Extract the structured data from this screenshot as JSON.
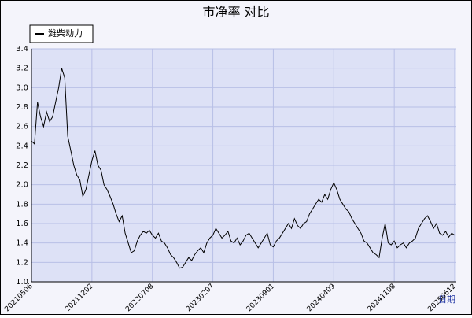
{
  "chart_data": {
    "type": "line",
    "title": "市净率 对比",
    "x_label": "日期",
    "categories": [
      "20210506",
      null,
      null,
      null,
      null,
      null,
      null,
      null,
      null,
      null,
      null,
      null,
      null,
      null,
      null,
      null,
      null,
      null,
      null,
      null,
      "20211202",
      null,
      null,
      null,
      null,
      null,
      null,
      null,
      null,
      null,
      null,
      null,
      null,
      null,
      null,
      null,
      null,
      null,
      null,
      null,
      "20220708",
      null,
      null,
      null,
      null,
      null,
      null,
      null,
      null,
      null,
      null,
      null,
      null,
      null,
      null,
      null,
      null,
      null,
      null,
      null,
      "20230207",
      null,
      null,
      null,
      null,
      null,
      null,
      null,
      null,
      null,
      null,
      null,
      null,
      null,
      null,
      null,
      null,
      null,
      null,
      null,
      "20230901",
      null,
      null,
      null,
      null,
      null,
      null,
      null,
      null,
      null,
      null,
      null,
      null,
      null,
      null,
      null,
      null,
      null,
      null,
      null,
      "20240409",
      null,
      null,
      null,
      null,
      null,
      null,
      null,
      null,
      null,
      null,
      null,
      null,
      null,
      null,
      null,
      null,
      null,
      null,
      null,
      "20241108",
      null,
      null,
      null,
      null,
      null,
      null,
      null,
      null,
      null,
      null,
      null,
      null,
      null,
      null,
      null,
      null,
      null,
      null,
      null,
      "20250612"
    ],
    "series": [
      {
        "name": "潍柴动力",
        "color": "#000000",
        "values": [
          2.45,
          2.42,
          2.85,
          2.7,
          2.6,
          2.75,
          2.65,
          2.7,
          2.85,
          3.0,
          3.2,
          3.1,
          2.5,
          2.35,
          2.2,
          2.1,
          2.05,
          1.88,
          1.95,
          2.1,
          2.25,
          2.35,
          2.2,
          2.15,
          2.0,
          1.95,
          1.88,
          1.8,
          1.7,
          1.62,
          1.68,
          1.5,
          1.4,
          1.3,
          1.32,
          1.42,
          1.48,
          1.52,
          1.5,
          1.53,
          1.48,
          1.45,
          1.5,
          1.42,
          1.4,
          1.35,
          1.28,
          1.25,
          1.2,
          1.14,
          1.15,
          1.2,
          1.25,
          1.22,
          1.28,
          1.32,
          1.35,
          1.3,
          1.4,
          1.45,
          1.48,
          1.55,
          1.5,
          1.45,
          1.48,
          1.52,
          1.42,
          1.4,
          1.45,
          1.38,
          1.42,
          1.48,
          1.5,
          1.45,
          1.4,
          1.35,
          1.4,
          1.45,
          1.5,
          1.38,
          1.36,
          1.42,
          1.45,
          1.5,
          1.55,
          1.6,
          1.55,
          1.65,
          1.58,
          1.55,
          1.6,
          1.62,
          1.7,
          1.75,
          1.8,
          1.85,
          1.82,
          1.9,
          1.85,
          1.95,
          2.02,
          1.95,
          1.85,
          1.8,
          1.75,
          1.72,
          1.65,
          1.6,
          1.55,
          1.5,
          1.42,
          1.4,
          1.35,
          1.3,
          1.28,
          1.25,
          1.45,
          1.6,
          1.4,
          1.38,
          1.42,
          1.35,
          1.38,
          1.4,
          1.35,
          1.4,
          1.42,
          1.45,
          1.55,
          1.6,
          1.65,
          1.68,
          1.62,
          1.55,
          1.6,
          1.5,
          1.48,
          1.52,
          1.46,
          1.5,
          1.48
        ]
      }
    ],
    "ylim": [
      1.0,
      3.4
    ],
    "yticks": [
      {
        "value": 1.0,
        "label": "1.0"
      },
      {
        "value": 1.2,
        "label": "1.2"
      },
      {
        "value": 1.4,
        "label": "1.4"
      },
      {
        "value": 1.6,
        "label": "1.6"
      },
      {
        "value": 1.8,
        "label": "1.8"
      },
      {
        "value": 2.0,
        "label": "2.0"
      },
      {
        "value": 2.2,
        "label": "2.2"
      },
      {
        "value": 2.4,
        "label": "2.4"
      },
      {
        "value": 2.6,
        "label": "2.6"
      },
      {
        "value": 2.8,
        "label": "2.8"
      },
      {
        "value": 3.0,
        "label": "3.0"
      },
      {
        "value": 3.2,
        "label": "3.2"
      },
      {
        "value": 3.4,
        "label": "3.4"
      }
    ],
    "grid": true,
    "legend": "top-left"
  }
}
